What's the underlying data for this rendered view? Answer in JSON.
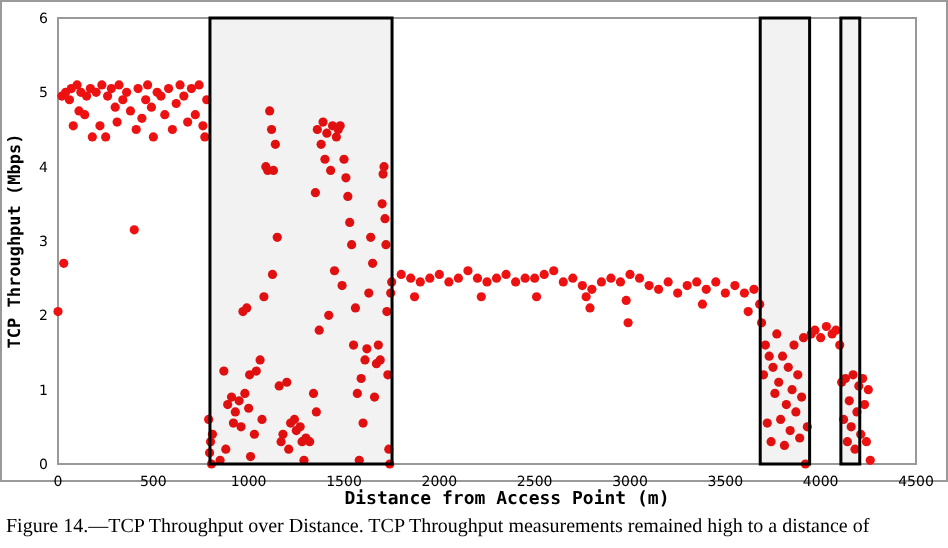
{
  "chart_data": {
    "type": "scatter",
    "xlabel": "Distance from Access Point (m)",
    "ylabel": "TCP Throughput (Mbps)",
    "annotations": [
      "Figure 14.—TCP Throughput over Distance. TCP Throughput measurements remained high to a distance of"
    ],
    "xlim": [
      0,
      4500
    ],
    "xticks": [
      0,
      500,
      1000,
      1500,
      2000,
      2500,
      3000,
      3500,
      4000,
      4500
    ],
    "ylim": [
      0,
      6
    ],
    "yticks": [
      0,
      1,
      2,
      3,
      4,
      5,
      6
    ],
    "grid": false,
    "marker": "circle",
    "bands": [
      {
        "axis": "x",
        "from": 797,
        "to": 1752,
        "color": "#000000"
      },
      {
        "axis": "x",
        "from": 3683,
        "to": 3942,
        "color": "#000000"
      },
      {
        "axis": "x",
        "from": 4106,
        "to": 4205,
        "color": "#000000"
      }
    ],
    "series": [
      {
        "color": "#ee1111",
        "x": [
          0,
          30,
          20,
          40,
          60,
          70,
          80,
          100,
          110,
          120,
          140,
          150,
          170,
          180,
          200,
          220,
          230,
          250,
          260,
          280,
          300,
          310,
          320,
          340,
          360,
          380,
          400,
          410,
          420,
          440,
          460,
          470,
          490,
          500,
          520,
          540,
          560,
          580,
          600,
          620,
          640,
          660,
          680,
          700,
          720,
          740,
          760,
          770,
          780,
          790,
          795,
          800,
          805,
          810,
          850,
          870,
          880,
          890,
          910,
          920,
          930,
          950,
          960,
          970,
          980,
          990,
          1000,
          1005,
          1010,
          1030,
          1040,
          1060,
          1070,
          1080,
          1090,
          1100,
          1110,
          1120,
          1125,
          1130,
          1140,
          1150,
          1160,
          1170,
          1180,
          1200,
          1210,
          1220,
          1240,
          1250,
          1270,
          1280,
          1290,
          1300,
          1320,
          1340,
          1350,
          1355,
          1360,
          1370,
          1380,
          1390,
          1400,
          1410,
          1420,
          1430,
          1440,
          1450,
          1460,
          1470,
          1480,
          1490,
          1500,
          1510,
          1520,
          1530,
          1540,
          1550,
          1560,
          1570,
          1580,
          1590,
          1600,
          1610,
          1620,
          1630,
          1640,
          1650,
          1660,
          1670,
          1680,
          1690,
          1700,
          1705,
          1710,
          1715,
          1720,
          1725,
          1730,
          1735,
          1740,
          1745,
          1750,
          1800,
          1850,
          1870,
          1900,
          1950,
          2000,
          2050,
          2100,
          2150,
          2200,
          2220,
          2250,
          2300,
          2350,
          2400,
          2450,
          2500,
          2510,
          2550,
          2600,
          2650,
          2700,
          2750,
          2770,
          2790,
          2800,
          2850,
          2900,
          2950,
          2980,
          2990,
          3000,
          3050,
          3100,
          3150,
          3200,
          3250,
          3300,
          3350,
          3380,
          3400,
          3450,
          3500,
          3550,
          3600,
          3620,
          3650,
          3680,
          3690,
          3700,
          3710,
          3720,
          3730,
          3740,
          3750,
          3760,
          3770,
          3780,
          3790,
          3800,
          3810,
          3820,
          3830,
          3840,
          3850,
          3860,
          3870,
          3880,
          3890,
          3900,
          3910,
          3920,
          3930,
          3950,
          3970,
          4000,
          4030,
          4060,
          4080,
          4100,
          4110,
          4120,
          4130,
          4140,
          4150,
          4160,
          4170,
          4180,
          4190,
          4200,
          4210,
          4220,
          4230,
          4240,
          4250,
          4260
        ],
        "values": [
          2.05,
          2.7,
          4.95,
          5.0,
          4.9,
          5.05,
          4.55,
          5.1,
          4.75,
          5.0,
          4.7,
          4.95,
          5.05,
          4.4,
          5.0,
          4.55,
          5.1,
          4.4,
          4.95,
          5.05,
          4.8,
          4.6,
          5.1,
          4.9,
          5.0,
          4.75,
          3.15,
          4.5,
          5.05,
          4.65,
          4.9,
          5.1,
          4.8,
          4.4,
          5.0,
          4.95,
          4.7,
          5.05,
          4.5,
          4.85,
          5.1,
          4.95,
          4.6,
          5.05,
          4.7,
          5.1,
          4.55,
          4.4,
          4.9,
          0.6,
          0.15,
          0.3,
          0,
          0.4,
          0.05,
          1.25,
          0.2,
          0.8,
          0.9,
          0.55,
          0.7,
          0.85,
          0.5,
          2.05,
          0.95,
          2.1,
          0.75,
          1.2,
          0.1,
          0.4,
          1.25,
          1.4,
          0.6,
          2.25,
          4.0,
          3.95,
          4.75,
          4.5,
          2.55,
          3.95,
          4.3,
          3.05,
          1.05,
          0.3,
          0.4,
          1.1,
          0.2,
          0.55,
          0.6,
          0.45,
          0.5,
          0.3,
          0.05,
          0.35,
          0.3,
          0.95,
          3.65,
          0.7,
          4.5,
          1.8,
          4.3,
          4.6,
          4.1,
          4.45,
          2.0,
          3.95,
          4.55,
          2.6,
          4.4,
          4.5,
          4.55,
          2.4,
          4.1,
          3.85,
          3.6,
          3.25,
          2.95,
          1.6,
          2.1,
          0.95,
          0.05,
          1.15,
          0.55,
          1.4,
          1.55,
          2.3,
          3.05,
          2.7,
          0.9,
          1.35,
          1.6,
          1.4,
          3.5,
          3.9,
          4.0,
          3.3,
          2.95,
          2.05,
          1.2,
          0.2,
          0,
          2.3,
          2.45,
          2.55,
          2.5,
          2.25,
          2.45,
          2.5,
          2.55,
          2.45,
          2.5,
          2.6,
          2.5,
          2.25,
          2.45,
          2.5,
          2.55,
          2.45,
          2.5,
          2.5,
          2.25,
          2.55,
          2.6,
          2.45,
          2.5,
          2.4,
          2.25,
          2.1,
          2.35,
          2.45,
          2.5,
          2.45,
          2.2,
          1.9,
          2.55,
          2.5,
          2.4,
          2.35,
          2.45,
          2.3,
          2.4,
          2.45,
          2.15,
          2.35,
          2.45,
          2.3,
          2.4,
          2.3,
          2.05,
          2.35,
          2.15,
          1.9,
          1.2,
          1.6,
          0.55,
          1.45,
          0.3,
          1.3,
          0.95,
          1.75,
          1.1,
          0.6,
          1.45,
          0.25,
          0.8,
          1.3,
          0.45,
          1.0,
          1.6,
          0.7,
          1.2,
          0.35,
          0.9,
          1.7,
          0.0,
          0.5,
          1.75,
          1.8,
          1.7,
          1.85,
          1.75,
          1.8,
          1.6,
          1.1,
          0.6,
          1.15,
          0.3,
          0.85,
          0.5,
          1.2,
          0.2,
          0.7,
          1.05,
          0.4,
          1.15,
          0.8,
          0.3,
          1.0,
          0.05
        ]
      }
    ]
  }
}
